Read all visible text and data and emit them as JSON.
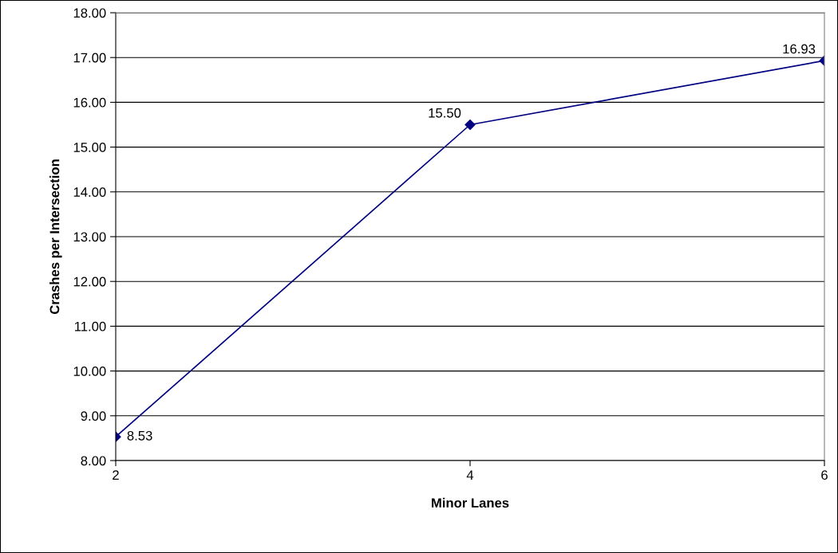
{
  "chart_data": {
    "type": "line",
    "xlabel": "Minor Lanes",
    "ylabel": "Crashes per Intersection",
    "categories": [
      "2",
      "4",
      "6"
    ],
    "series": [
      {
        "color": "#000080",
        "values": [
          8.53,
          15.5,
          16.93
        ],
        "value_labels": [
          "8.53",
          "15.50",
          "16.93"
        ]
      }
    ],
    "ylim": [
      8,
      18
    ],
    "yticks": [
      {
        "value": 8,
        "label": "8.00"
      },
      {
        "value": 9,
        "label": "9.00"
      },
      {
        "value": 10,
        "label": "10.00"
      },
      {
        "value": 11,
        "label": "11.00"
      },
      {
        "value": 12,
        "label": "12.00"
      },
      {
        "value": 13,
        "label": "13.00"
      },
      {
        "value": 14,
        "label": "14.00"
      },
      {
        "value": 15,
        "label": "15.00"
      },
      {
        "value": 16,
        "label": "16.00"
      },
      {
        "value": 17,
        "label": "17.00"
      },
      {
        "value": 18,
        "label": "18.00"
      }
    ],
    "grid": "y",
    "marker": "diamond",
    "line_style": "solid"
  }
}
